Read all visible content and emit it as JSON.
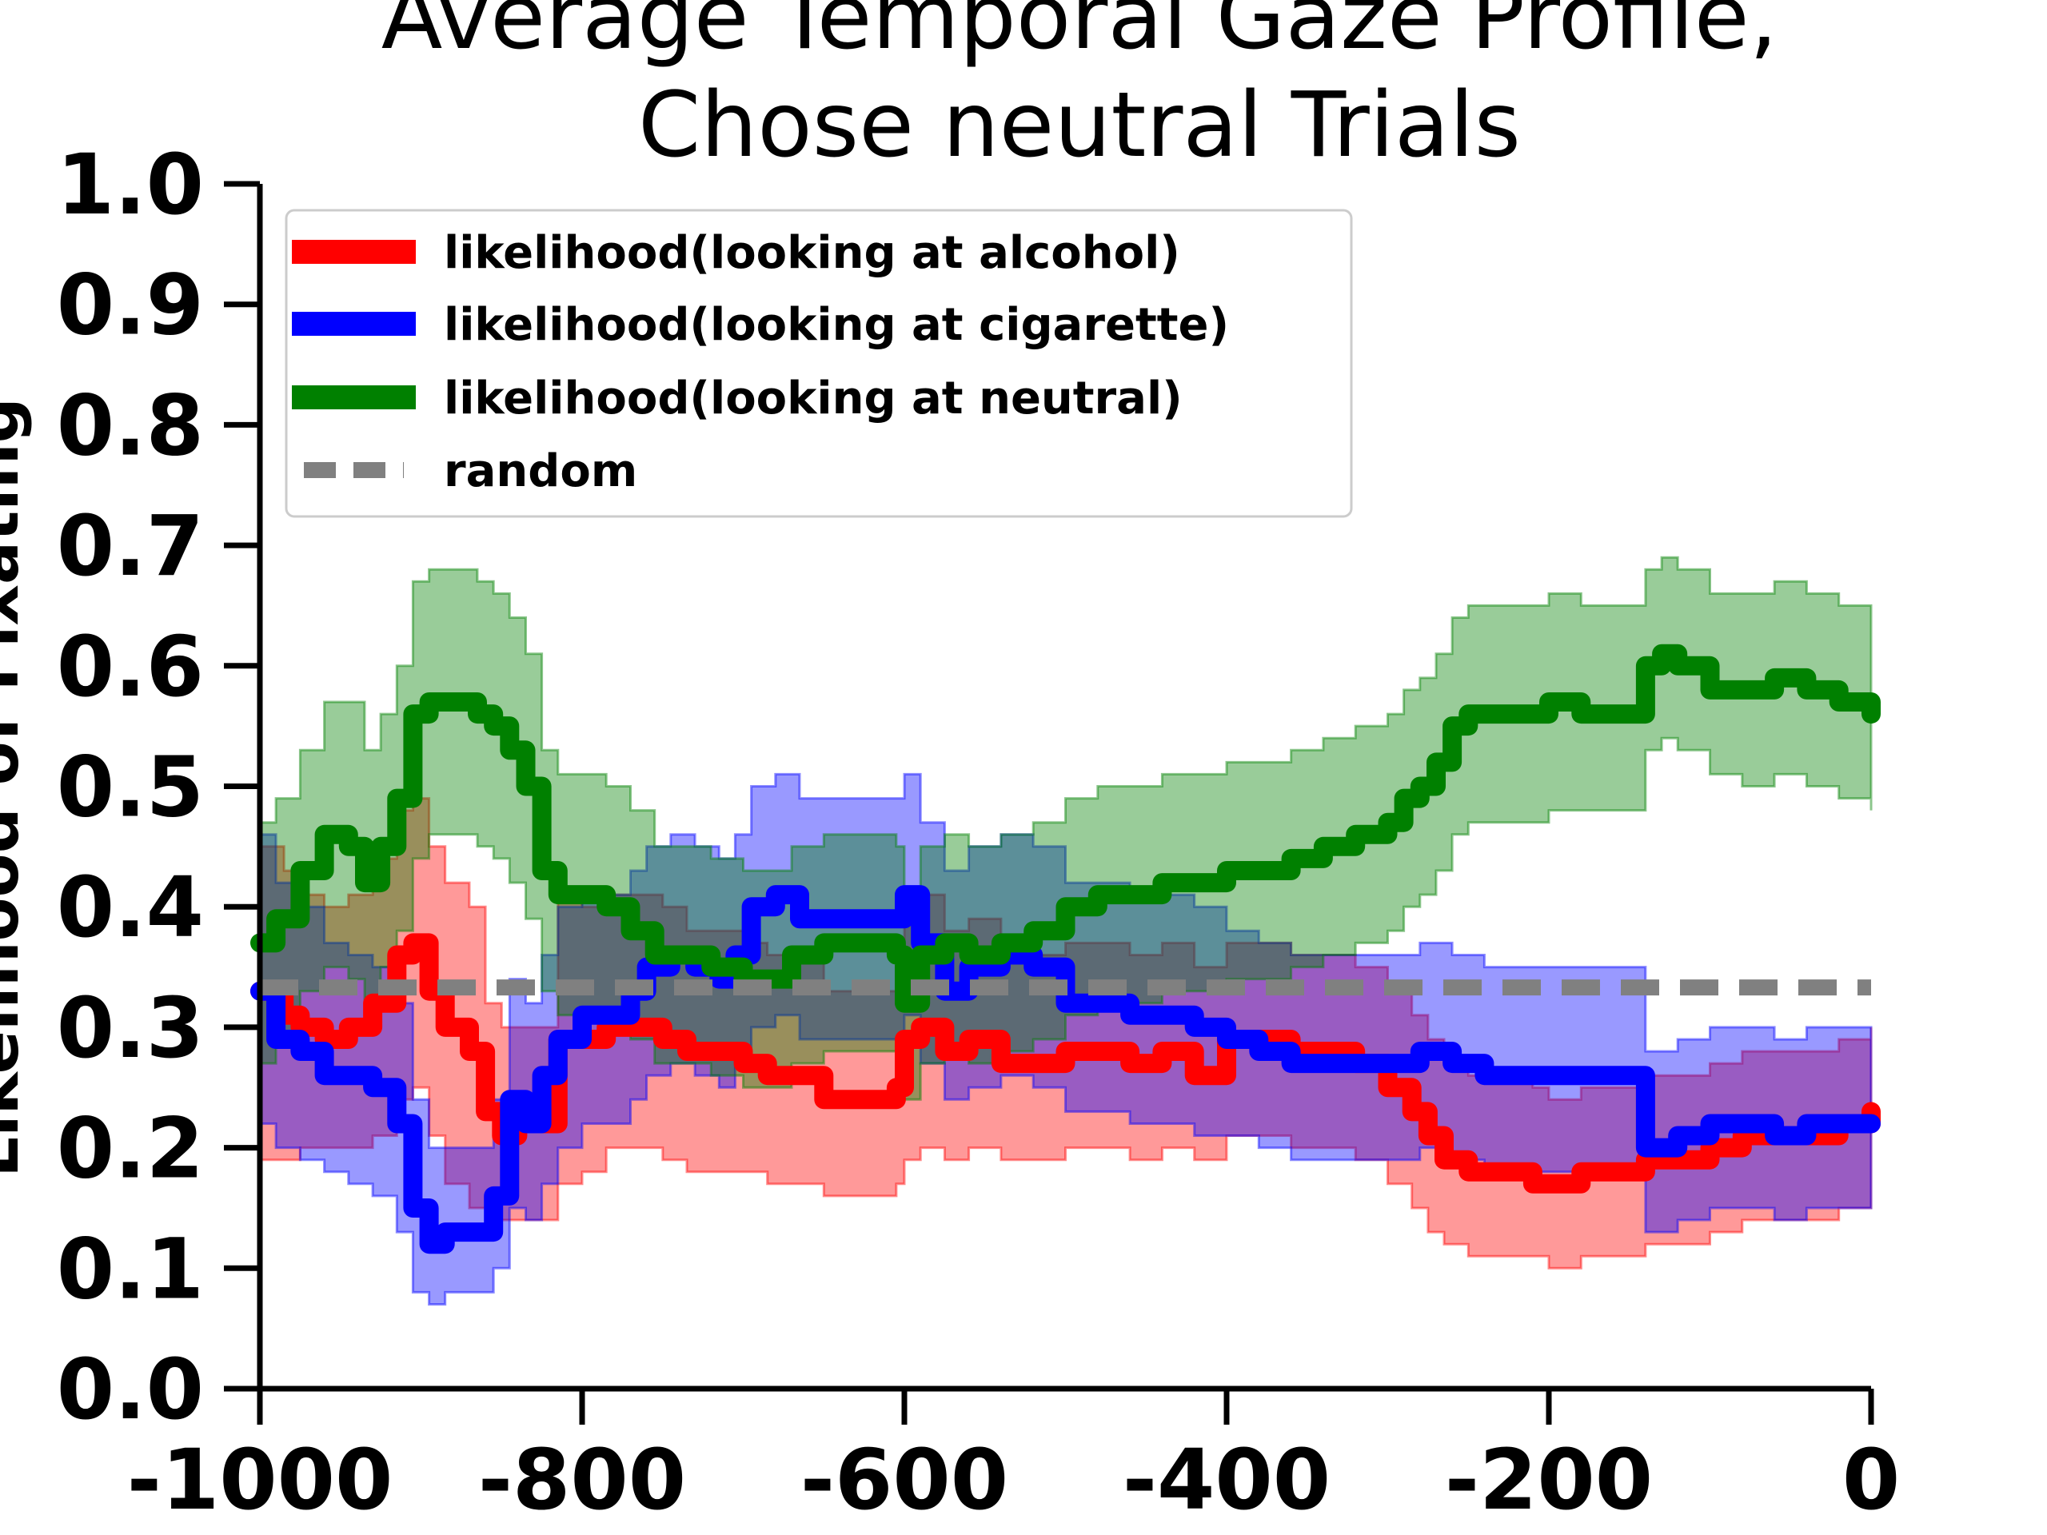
{
  "chart_data": {
    "type": "line",
    "title": [
      "Average Temporal Gaze Profile,",
      "Chose neutral Trials"
    ],
    "xlabel": "",
    "ylabel": "Likelihood of Fixating",
    "xlim": [
      -1000,
      0
    ],
    "ylim": [
      0.0,
      1.0
    ],
    "xticks": [
      -1000,
      -800,
      -600,
      -400,
      -200,
      0
    ],
    "xtick_labels": [
      "-1000",
      "-800",
      "-600",
      "-400",
      "-200",
      "0"
    ],
    "yticks": [
      0.0,
      0.1,
      0.2,
      0.3,
      0.4,
      0.5,
      0.6,
      0.7,
      0.8,
      0.9,
      1.0
    ],
    "ytick_labels": [
      "0.0",
      "0.1",
      "0.2",
      "0.3",
      "0.4",
      "0.5",
      "0.6",
      "0.7",
      "0.8",
      "0.9",
      "1.0"
    ],
    "grid": false,
    "legend_position": "top-left",
    "series": [
      {
        "name": "likelihood(looking at alcohol)",
        "color": "#ff0000",
        "x": [
          -1000,
          -985,
          -975,
          -960,
          -945,
          -930,
          -915,
          -905,
          -895,
          -885,
          -870,
          -860,
          -850,
          -840,
          -825,
          -815,
          -800,
          -785,
          -770,
          -750,
          -735,
          -715,
          -700,
          -685,
          -665,
          -650,
          -635,
          -620,
          -605,
          -600,
          -590,
          -575,
          -560,
          -540,
          -520,
          -500,
          -480,
          -460,
          -440,
          -420,
          -400,
          -380,
          -360,
          -340,
          -320,
          -300,
          -285,
          -275,
          -265,
          -250,
          -230,
          -210,
          -200,
          -180,
          -160,
          -140,
          -120,
          -100,
          -80,
          -60,
          -40,
          -20,
          0
        ],
        "y": [
          0.33,
          0.31,
          0.3,
          0.29,
          0.3,
          0.32,
          0.36,
          0.37,
          0.33,
          0.3,
          0.28,
          0.23,
          0.21,
          0.22,
          0.22,
          0.29,
          0.29,
          0.3,
          0.3,
          0.29,
          0.28,
          0.28,
          0.27,
          0.26,
          0.26,
          0.24,
          0.24,
          0.24,
          0.25,
          0.29,
          0.3,
          0.28,
          0.29,
          0.27,
          0.27,
          0.28,
          0.28,
          0.27,
          0.28,
          0.26,
          0.29,
          0.29,
          0.28,
          0.28,
          0.27,
          0.25,
          0.23,
          0.21,
          0.19,
          0.18,
          0.18,
          0.17,
          0.17,
          0.18,
          0.18,
          0.19,
          0.19,
          0.2,
          0.21,
          0.21,
          0.21,
          0.22,
          0.23
        ],
        "lower": [
          0.19,
          0.19,
          0.2,
          0.2,
          0.2,
          0.21,
          0.24,
          0.25,
          0.21,
          0.17,
          0.15,
          0.14,
          0.14,
          0.14,
          0.14,
          0.17,
          0.18,
          0.2,
          0.2,
          0.19,
          0.18,
          0.18,
          0.18,
          0.17,
          0.17,
          0.16,
          0.16,
          0.16,
          0.17,
          0.19,
          0.2,
          0.19,
          0.2,
          0.19,
          0.19,
          0.2,
          0.2,
          0.19,
          0.2,
          0.19,
          0.21,
          0.21,
          0.2,
          0.2,
          0.19,
          0.17,
          0.15,
          0.13,
          0.12,
          0.11,
          0.11,
          0.11,
          0.1,
          0.11,
          0.11,
          0.12,
          0.12,
          0.13,
          0.14,
          0.14,
          0.14,
          0.15,
          0.16
        ],
        "upper": [
          0.45,
          0.43,
          0.41,
          0.4,
          0.41,
          0.44,
          0.48,
          0.49,
          0.45,
          0.42,
          0.4,
          0.32,
          0.3,
          0.3,
          0.3,
          0.41,
          0.4,
          0.41,
          0.41,
          0.4,
          0.38,
          0.38,
          0.37,
          0.36,
          0.36,
          0.33,
          0.33,
          0.33,
          0.34,
          0.4,
          0.41,
          0.38,
          0.39,
          0.36,
          0.36,
          0.37,
          0.37,
          0.36,
          0.37,
          0.35,
          0.37,
          0.37,
          0.36,
          0.36,
          0.35,
          0.33,
          0.31,
          0.29,
          0.27,
          0.26,
          0.26,
          0.25,
          0.24,
          0.25,
          0.25,
          0.26,
          0.26,
          0.27,
          0.28,
          0.28,
          0.28,
          0.29,
          0.3
        ]
      },
      {
        "name": "likelihood(looking at cigarette)",
        "color": "#0000ff",
        "x": [
          -1000,
          -990,
          -975,
          -960,
          -945,
          -930,
          -915,
          -905,
          -895,
          -885,
          -875,
          -865,
          -855,
          -845,
          -835,
          -825,
          -815,
          -800,
          -785,
          -770,
          -760,
          -745,
          -730,
          -715,
          -705,
          -695,
          -680,
          -665,
          -650,
          -635,
          -620,
          -605,
          -600,
          -590,
          -575,
          -560,
          -540,
          -520,
          -500,
          -480,
          -460,
          -440,
          -420,
          -400,
          -380,
          -360,
          -340,
          -320,
          -300,
          -280,
          -270,
          -260,
          -240,
          -220,
          -200,
          -180,
          -160,
          -150,
          -140,
          -130,
          -120,
          -100,
          -80,
          -60,
          -40,
          -20,
          0
        ],
        "y": [
          0.33,
          0.29,
          0.28,
          0.26,
          0.26,
          0.25,
          0.22,
          0.15,
          0.12,
          0.13,
          0.13,
          0.13,
          0.16,
          0.24,
          0.22,
          0.26,
          0.29,
          0.31,
          0.31,
          0.33,
          0.35,
          0.36,
          0.35,
          0.34,
          0.36,
          0.4,
          0.41,
          0.39,
          0.39,
          0.39,
          0.39,
          0.39,
          0.41,
          0.37,
          0.33,
          0.35,
          0.36,
          0.35,
          0.32,
          0.32,
          0.31,
          0.31,
          0.3,
          0.29,
          0.28,
          0.27,
          0.27,
          0.27,
          0.27,
          0.28,
          0.28,
          0.27,
          0.26,
          0.26,
          0.26,
          0.26,
          0.26,
          0.26,
          0.2,
          0.2,
          0.21,
          0.22,
          0.22,
          0.21,
          0.22,
          0.22,
          0.22
        ],
        "lower": [
          0.22,
          0.2,
          0.19,
          0.18,
          0.17,
          0.16,
          0.13,
          0.08,
          0.07,
          0.08,
          0.08,
          0.08,
          0.1,
          0.15,
          0.14,
          0.17,
          0.2,
          0.22,
          0.22,
          0.24,
          0.26,
          0.27,
          0.26,
          0.25,
          0.27,
          0.3,
          0.31,
          0.29,
          0.29,
          0.29,
          0.29,
          0.29,
          0.31,
          0.27,
          0.24,
          0.25,
          0.26,
          0.25,
          0.23,
          0.23,
          0.22,
          0.22,
          0.21,
          0.21,
          0.2,
          0.19,
          0.19,
          0.19,
          0.19,
          0.2,
          0.2,
          0.19,
          0.18,
          0.18,
          0.18,
          0.18,
          0.18,
          0.18,
          0.13,
          0.13,
          0.14,
          0.15,
          0.15,
          0.14,
          0.15,
          0.15,
          0.15
        ],
        "upper": [
          0.46,
          0.42,
          0.4,
          0.37,
          0.36,
          0.35,
          0.32,
          0.24,
          0.2,
          0.2,
          0.2,
          0.2,
          0.24,
          0.34,
          0.32,
          0.36,
          0.4,
          0.41,
          0.41,
          0.43,
          0.45,
          0.46,
          0.45,
          0.44,
          0.46,
          0.5,
          0.51,
          0.49,
          0.49,
          0.49,
          0.49,
          0.49,
          0.51,
          0.47,
          0.43,
          0.45,
          0.46,
          0.45,
          0.42,
          0.42,
          0.41,
          0.41,
          0.4,
          0.38,
          0.37,
          0.36,
          0.36,
          0.36,
          0.36,
          0.37,
          0.37,
          0.36,
          0.35,
          0.35,
          0.35,
          0.35,
          0.35,
          0.35,
          0.28,
          0.28,
          0.29,
          0.3,
          0.3,
          0.29,
          0.3,
          0.3,
          0.3
        ]
      },
      {
        "name": "likelihood(looking at neutral)",
        "color": "#008000",
        "x": [
          -1000,
          -990,
          -975,
          -960,
          -945,
          -935,
          -925,
          -915,
          -905,
          -895,
          -885,
          -875,
          -865,
          -855,
          -845,
          -835,
          -825,
          -815,
          -800,
          -785,
          -770,
          -755,
          -740,
          -720,
          -700,
          -685,
          -670,
          -650,
          -635,
          -620,
          -605,
          -600,
          -590,
          -575,
          -560,
          -540,
          -520,
          -500,
          -480,
          -460,
          -440,
          -420,
          -400,
          -380,
          -360,
          -340,
          -320,
          -300,
          -290,
          -280,
          -270,
          -260,
          -250,
          -235,
          -220,
          -200,
          -180,
          -160,
          -140,
          -130,
          -120,
          -100,
          -80,
          -60,
          -40,
          -20,
          0
        ],
        "y": [
          0.37,
          0.39,
          0.43,
          0.46,
          0.45,
          0.42,
          0.45,
          0.49,
          0.56,
          0.57,
          0.57,
          0.57,
          0.56,
          0.55,
          0.53,
          0.5,
          0.43,
          0.41,
          0.41,
          0.4,
          0.38,
          0.36,
          0.36,
          0.35,
          0.34,
          0.34,
          0.36,
          0.37,
          0.37,
          0.37,
          0.36,
          0.32,
          0.36,
          0.37,
          0.36,
          0.37,
          0.38,
          0.4,
          0.41,
          0.41,
          0.42,
          0.42,
          0.43,
          0.43,
          0.44,
          0.45,
          0.46,
          0.47,
          0.49,
          0.5,
          0.52,
          0.55,
          0.56,
          0.56,
          0.56,
          0.57,
          0.56,
          0.56,
          0.6,
          0.61,
          0.6,
          0.58,
          0.58,
          0.59,
          0.58,
          0.57,
          0.56
        ],
        "lower": [
          0.27,
          0.29,
          0.33,
          0.35,
          0.34,
          0.32,
          0.35,
          0.38,
          0.44,
          0.46,
          0.46,
          0.46,
          0.45,
          0.44,
          0.42,
          0.39,
          0.33,
          0.31,
          0.31,
          0.3,
          0.29,
          0.27,
          0.27,
          0.26,
          0.25,
          0.25,
          0.27,
          0.28,
          0.28,
          0.28,
          0.27,
          0.24,
          0.27,
          0.28,
          0.27,
          0.28,
          0.29,
          0.31,
          0.32,
          0.32,
          0.33,
          0.33,
          0.34,
          0.34,
          0.35,
          0.36,
          0.37,
          0.38,
          0.4,
          0.41,
          0.43,
          0.46,
          0.47,
          0.47,
          0.47,
          0.48,
          0.48,
          0.48,
          0.53,
          0.54,
          0.53,
          0.51,
          0.5,
          0.51,
          0.5,
          0.49,
          0.48
        ],
        "upper": [
          0.47,
          0.49,
          0.53,
          0.57,
          0.57,
          0.53,
          0.56,
          0.6,
          0.67,
          0.68,
          0.68,
          0.68,
          0.67,
          0.66,
          0.64,
          0.61,
          0.53,
          0.51,
          0.51,
          0.5,
          0.48,
          0.45,
          0.45,
          0.44,
          0.43,
          0.43,
          0.45,
          0.46,
          0.46,
          0.46,
          0.45,
          0.41,
          0.45,
          0.46,
          0.45,
          0.46,
          0.47,
          0.49,
          0.5,
          0.5,
          0.51,
          0.51,
          0.52,
          0.52,
          0.53,
          0.54,
          0.55,
          0.56,
          0.58,
          0.59,
          0.61,
          0.64,
          0.65,
          0.65,
          0.65,
          0.66,
          0.65,
          0.65,
          0.68,
          0.69,
          0.68,
          0.66,
          0.66,
          0.67,
          0.66,
          0.65,
          0.63
        ]
      }
    ],
    "reference_line": {
      "name": "random",
      "color": "#808080",
      "y": 0.333,
      "style": "dashed"
    }
  }
}
